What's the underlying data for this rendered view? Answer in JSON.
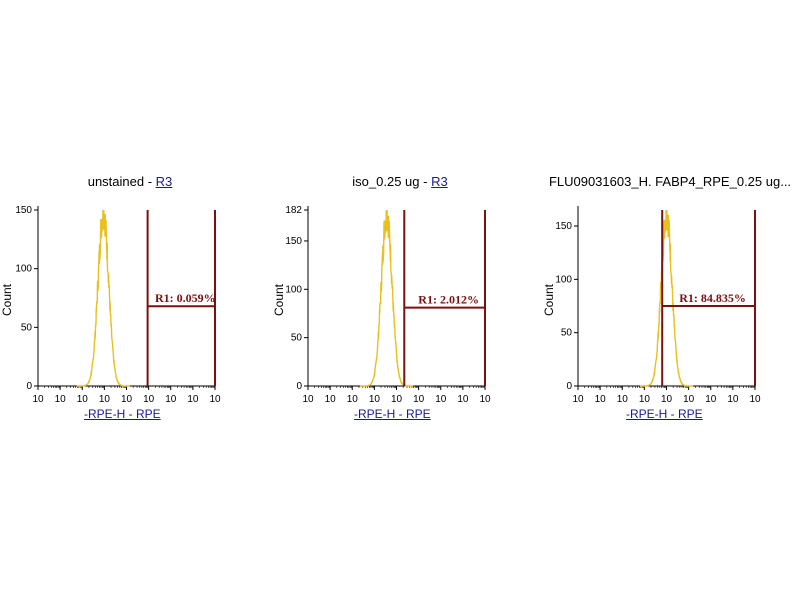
{
  "colors": {
    "histogram": "#e8c020",
    "gate": "#7a1010",
    "axis": "#000000",
    "link": "#1a1a8c"
  },
  "chart_data": [
    {
      "type": "histogram",
      "title_prefix": "unstained - ",
      "title_link": "R3",
      "xlabel": "-RPE-H - RPE",
      "ylabel": "Count",
      "xscale": "log",
      "xlim": [
        1,
        10000
      ],
      "ylim": [
        0,
        150
      ],
      "yticks": [
        0,
        50,
        100,
        150
      ],
      "ytick_labels": [
        "0",
        "50",
        "100",
        "150"
      ],
      "xtick_labels": [
        "10",
        "10",
        "10",
        "10",
        "10",
        "10",
        "10",
        "10",
        "10"
      ],
      "peak_x": 30,
      "peak_count": 148,
      "peak_width_decades": 0.12,
      "gate": {
        "name": "R1",
        "x_start": 300,
        "x_end": 10000,
        "level": 68,
        "label": "R1: 0.059%"
      }
    },
    {
      "type": "histogram",
      "title_prefix": "iso_0.25 ug - ",
      "title_link": "R3",
      "xlabel": "-RPE-H - RPE",
      "ylabel": "Count",
      "xscale": "log",
      "xlim": [
        1,
        10000
      ],
      "ylim": [
        0,
        182
      ],
      "yticks": [
        0,
        50,
        100,
        150,
        182
      ],
      "ytick_labels": [
        "0",
        "50",
        "100",
        "150",
        "182"
      ],
      "xtick_labels": [
        "10",
        "10",
        "10",
        "10",
        "10",
        "10",
        "10",
        "10",
        "10"
      ],
      "peak_x": 60,
      "peak_count": 178,
      "peak_width_decades": 0.12,
      "gate": {
        "name": "R1",
        "x_start": 150,
        "x_end": 10000,
        "level": 81,
        "label": "R1: 2.012%"
      }
    },
    {
      "type": "histogram",
      "title_prefix": "FLU09031603_H. FABP4_RPE_0.25 ug...",
      "title_link": "",
      "xlabel": "-RPE-H - RPE",
      "ylabel": "Count",
      "xscale": "log",
      "xlim": [
        1,
        10000
      ],
      "ylim": [
        0,
        165
      ],
      "yticks": [
        0,
        50,
        100,
        150
      ],
      "ytick_labels": [
        "0",
        "50",
        "100",
        "150"
      ],
      "xtick_labels": [
        "10",
        "10",
        "10",
        "10",
        "10",
        "10",
        "10",
        "10",
        "10"
      ],
      "peak_x": 100,
      "peak_count": 162,
      "peak_width_decades": 0.12,
      "gate": {
        "name": "R1",
        "x_start": 80,
        "x_end": 10000,
        "level": 75,
        "label": "R1: 84.835%"
      }
    }
  ]
}
